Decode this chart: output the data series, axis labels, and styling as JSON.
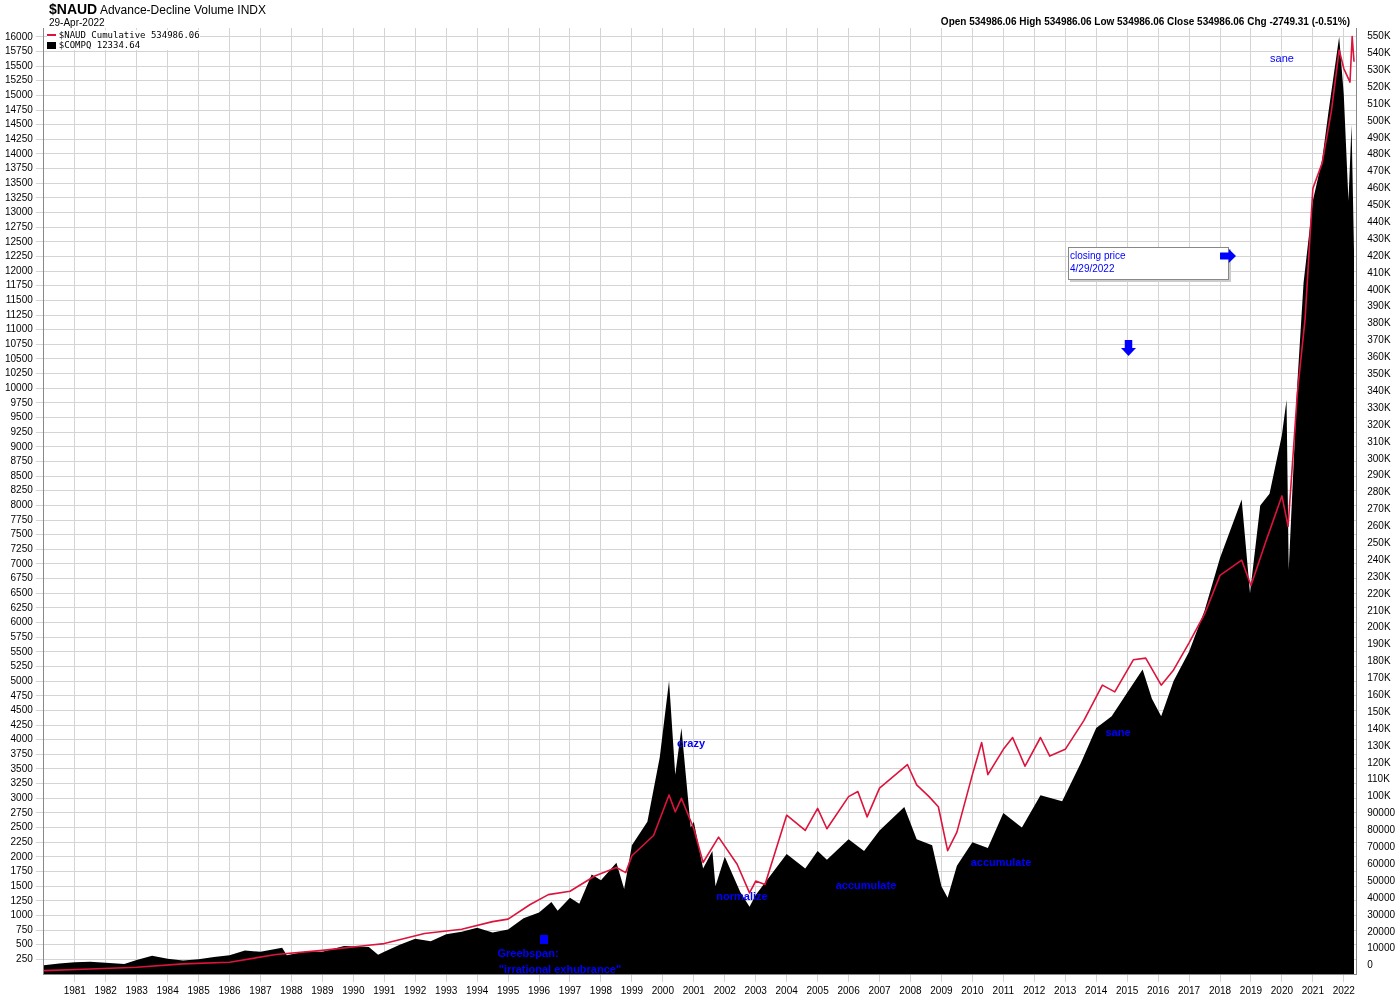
{
  "chart_data": {
    "type": "line",
    "title": "$NAUD Advance-Decline Volume INDX",
    "subtitle": "29-Apr-2022",
    "annotations": [
      "Open 534986.06  High 534986.06  Low 534986.06  Close 534986.06  Chg -2749.31 (-0.51%)",
      "closing price\n4/29/2022",
      "crazy",
      "normalize",
      "accumulate",
      "accumulate",
      "sane",
      "sane",
      "Greebspan:",
      "\"irrational exhubrance\""
    ],
    "xlim": [
      1980,
      2022.4
    ],
    "xticks": [
      1981,
      1982,
      1983,
      1984,
      1985,
      1986,
      1987,
      1988,
      1989,
      1990,
      1991,
      1992,
      1993,
      1994,
      1995,
      1996,
      1997,
      1998,
      1999,
      2000,
      2001,
      2002,
      2003,
      2004,
      2005,
      2006,
      2007,
      2008,
      2009,
      2010,
      2011,
      2012,
      2013,
      2014,
      2015,
      2016,
      2017,
      2018,
      2019,
      2020,
      2021,
      2022
    ],
    "ylim": [
      0,
      16150
    ],
    "yticks": [
      250,
      500,
      750,
      1000,
      1250,
      1500,
      1750,
      2000,
      2250,
      2500,
      2750,
      3000,
      3250,
      3500,
      3750,
      4000,
      4250,
      4500,
      4750,
      5000,
      5250,
      5500,
      5750,
      6000,
      6250,
      6500,
      6750,
      7000,
      7250,
      7500,
      7750,
      8000,
      8250,
      8500,
      8750,
      9000,
      9250,
      9500,
      9750,
      10000,
      10250,
      10500,
      10750,
      11000,
      11250,
      11500,
      11750,
      12000,
      12250,
      12500,
      12750,
      13000,
      13250,
      13500,
      13750,
      14000,
      14250,
      14500,
      14750,
      15000,
      15250,
      15500,
      15750,
      16000
    ],
    "y2lim": [
      -5000,
      555000
    ],
    "y2ticks": [
      0,
      10000,
      20000,
      30000,
      40000,
      50000,
      60000,
      70000,
      80000,
      90000,
      {
        "value": 100000,
        "label": "100K"
      },
      {
        "value": 110000,
        "label": "110K"
      },
      {
        "value": 120000,
        "label": "120K"
      },
      {
        "value": 130000,
        "label": "130K"
      },
      {
        "value": 140000,
        "label": "140K"
      },
      {
        "value": 150000,
        "label": "150K"
      },
      {
        "value": 160000,
        "label": "160K"
      },
      {
        "value": 170000,
        "label": "170K"
      },
      {
        "value": 180000,
        "label": "180K"
      },
      {
        "value": 190000,
        "label": "190K"
      },
      {
        "value": 200000,
        "label": "200K"
      },
      {
        "value": 210000,
        "label": "210K"
      },
      {
        "value": 220000,
        "label": "220K"
      },
      {
        "value": 230000,
        "label": "230K"
      },
      {
        "value": 240000,
        "label": "240K"
      },
      {
        "value": 250000,
        "label": "250K"
      },
      {
        "value": 260000,
        "label": "260K"
      },
      {
        "value": 270000,
        "label": "270K"
      },
      {
        "value": 280000,
        "label": "280K"
      },
      {
        "value": 290000,
        "label": "290K"
      },
      {
        "value": 300000,
        "label": "300K"
      },
      {
        "value": 310000,
        "label": "310K"
      },
      {
        "value": 320000,
        "label": "320K"
      },
      {
        "value": 330000,
        "label": "330K"
      },
      {
        "value": 340000,
        "label": "340K"
      },
      {
        "value": 350000,
        "label": "350K"
      },
      {
        "value": 360000,
        "label": "360K"
      },
      {
        "value": 370000,
        "label": "370K"
      },
      {
        "value": 380000,
        "label": "380K"
      },
      {
        "value": 390000,
        "label": "390K"
      },
      {
        "value": 400000,
        "label": "400K"
      },
      {
        "value": 410000,
        "label": "410K"
      },
      {
        "value": 420000,
        "label": "420K"
      },
      {
        "value": 430000,
        "label": "430K"
      },
      {
        "value": 440000,
        "label": "440K"
      },
      {
        "value": 450000,
        "label": "450K"
      },
      {
        "value": 460000,
        "label": "460K"
      },
      {
        "value": 470000,
        "label": "470K"
      },
      {
        "value": 480000,
        "label": "480K"
      },
      {
        "value": 490000,
        "label": "490K"
      },
      {
        "value": 500000,
        "label": "500K"
      },
      {
        "value": 510000,
        "label": "510K"
      },
      {
        "value": 520000,
        "label": "520K"
      },
      {
        "value": 530000,
        "label": "530K"
      },
      {
        "value": 540000,
        "label": "540K"
      },
      {
        "value": 550000,
        "label": "550K"
      }
    ],
    "grid": true,
    "legend": "top left",
    "marker": "none",
    "series": [
      {
        "name": "$NAUD Cumulative 534986.06",
        "axis": "y2",
        "color": "#dc143c",
        "x": [
          1980.0,
          1981.5,
          1983.0,
          1984.5,
          1986.0,
          1987.5,
          1989.0,
          1990.5,
          1991.0,
          1992.3,
          1993.5,
          1994.5,
          1995.0,
          1995.7,
          1996.3,
          1997.0,
          1997.8,
          1998.5,
          1998.8,
          1999.0,
          1999.7,
          2000.2,
          2000.4,
          2000.6,
          2001.0,
          2001.3,
          2001.8,
          2002.4,
          2002.8,
          2003.0,
          2003.3,
          2004.0,
          2004.6,
          2005.0,
          2005.3,
          2006.0,
          2006.3,
          2006.6,
          2007.0,
          2007.9,
          2008.2,
          2008.6,
          2008.9,
          2009.2,
          2009.5,
          2010.0,
          2010.3,
          2010.5,
          2011.0,
          2011.3,
          2011.7,
          2012.2,
          2012.5,
          2013.0,
          2013.6,
          2014.2,
          2014.6,
          2015.2,
          2015.6,
          2016.1,
          2016.5,
          2017.0,
          2017.5,
          2018.0,
          2018.7,
          2019.0,
          2019.5,
          2020.0,
          2020.2,
          2020.5,
          2020.75,
          2021.0,
          2021.3,
          2021.6,
          2021.85,
          2022.0,
          2022.2,
          2022.27,
          2022.33
        ],
        "values": [
          -3000,
          -2000,
          -1000,
          1000,
          2000,
          6500,
          9000,
          12000,
          13000,
          19000,
          21500,
          26000,
          27500,
          36000,
          42000,
          44000,
          53000,
          58000,
          55000,
          65000,
          77000,
          101000,
          91000,
          99000,
          81000,
          61000,
          76000,
          60000,
          43000,
          50000,
          48000,
          89000,
          80000,
          93000,
          81000,
          100000,
          103000,
          88000,
          105000,
          119000,
          107000,
          100000,
          94000,
          68000,
          79000,
          113000,
          132000,
          113000,
          128000,
          135000,
          118000,
          135000,
          124000,
          128000,
          145000,
          166000,
          162000,
          181000,
          182000,
          166000,
          175000,
          191000,
          208000,
          231000,
          240000,
          225000,
          252000,
          278000,
          260000,
          339000,
          383000,
          460000,
          475000,
          506000,
          542000,
          531000,
          523000,
          550000,
          535000
        ]
      },
      {
        "name": "$COMPQ 12334.64",
        "type": "area",
        "color": "#000000",
        "x": [
          1980.0,
          1980.5,
          1981.0,
          1981.5,
          1982.0,
          1982.6,
          1983.0,
          1983.5,
          1984.0,
          1984.5,
          1985.0,
          1985.5,
          1986.0,
          1986.5,
          1987.0,
          1987.7,
          1987.85,
          1988.5,
          1989.0,
          1989.7,
          1990.5,
          1990.8,
          1991.0,
          1991.5,
          1992.0,
          1992.5,
          1993.0,
          1993.5,
          1994.0,
          1994.5,
          1995.0,
          1995.5,
          1996.0,
          1996.4,
          1996.6,
          1997.0,
          1997.3,
          1997.7,
          1998.0,
          1998.5,
          1998.75,
          1999.0,
          1999.5,
          1999.9,
          2000.2,
          2000.4,
          2000.6,
          2000.9,
          2001.0,
          2001.3,
          2001.6,
          2001.7,
          2002.0,
          2002.5,
          2002.8,
          2003.0,
          2003.5,
          2004.0,
          2004.6,
          2005.0,
          2005.3,
          2006.0,
          2006.5,
          2007.0,
          2007.8,
          2008.2,
          2008.7,
          2009.0,
          2009.2,
          2009.5,
          2010.0,
          2010.5,
          2011.0,
          2011.6,
          2012.2,
          2012.9,
          2013.5,
          2014.0,
          2014.5,
          2015.0,
          2015.5,
          2015.8,
          2016.1,
          2016.5,
          2017.0,
          2017.5,
          2018.0,
          2018.7,
          2018.97,
          2019.3,
          2019.6,
          2020.0,
          2020.15,
          2020.22,
          2020.5,
          2020.7,
          2021.0,
          2021.3,
          2021.5,
          2021.85,
          2022.0,
          2022.15,
          2022.25,
          2022.33
        ],
        "values": [
          150,
          180,
          200,
          210,
          190,
          170,
          240,
          310,
          260,
          230,
          250,
          290,
          320,
          400,
          380,
          450,
          320,
          390,
          380,
          480,
          460,
          330,
          380,
          500,
          600,
          560,
          680,
          720,
          790,
          710,
          760,
          950,
          1050,
          1230,
          1080,
          1300,
          1200,
          1700,
          1600,
          1900,
          1450,
          2200,
          2600,
          3700,
          5000,
          3400,
          4200,
          2500,
          2600,
          1800,
          2100,
          1500,
          2000,
          1400,
          1150,
          1350,
          1700,
          2050,
          1800,
          2100,
          1950,
          2300,
          2100,
          2450,
          2850,
          2300,
          2200,
          1500,
          1300,
          1850,
          2250,
          2150,
          2750,
          2500,
          3050,
          2950,
          3600,
          4200,
          4400,
          4800,
          5200,
          4700,
          4400,
          5000,
          5500,
          6200,
          7100,
          8100,
          6500,
          8000,
          8200,
          9200,
          9800,
          6900,
          10100,
          11800,
          13200,
          13900,
          14700,
          16000,
          15000,
          13200,
          14500,
          12330
        ]
      }
    ]
  }
}
